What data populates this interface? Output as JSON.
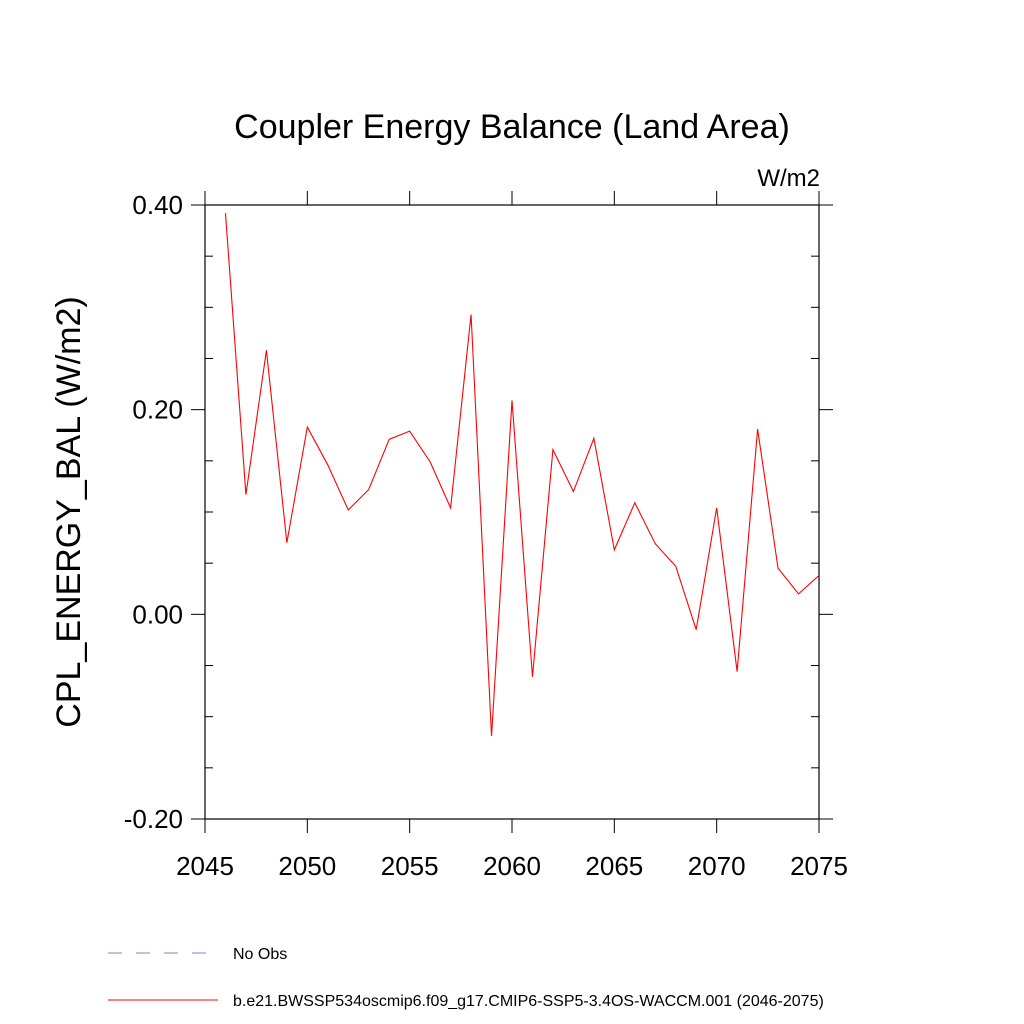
{
  "chart_data": {
    "type": "line",
    "title": "Coupler Energy Balance (Land Area)",
    "units_label": "W/m2",
    "xlabel": "",
    "ylabel": "CPL_ENERGY_BAL  (W/m2)",
    "xlim": [
      2045,
      2075
    ],
    "ylim": [
      -0.2,
      0.4
    ],
    "x_ticks": [
      2045,
      2050,
      2055,
      2060,
      2065,
      2070,
      2075
    ],
    "x_tick_labels": [
      "2045",
      "2050",
      "2055",
      "2060",
      "2065",
      "2070",
      "2075"
    ],
    "y_ticks": [
      -0.2,
      0.0,
      0.2,
      0.4
    ],
    "y_tick_labels": [
      "-0.20",
      "0.00",
      "0.20",
      "0.40"
    ],
    "y_minor_step": 0.05,
    "x_minor_step": 1,
    "grid": false,
    "legend_position": "bottom-left",
    "series": [
      {
        "name": "b.e21.BWSSP534oscmip6.f09_g17.CMIP6-SSP5-3.4OS-WACCM.001 (2046-2075)",
        "color": "#ff0000",
        "style": "solid",
        "x": [
          2046,
          2047,
          2048,
          2049,
          2050,
          2051,
          2052,
          2053,
          2054,
          2055,
          2056,
          2057,
          2058,
          2059,
          2060,
          2061,
          2062,
          2063,
          2064,
          2065,
          2066,
          2067,
          2068,
          2069,
          2070,
          2071,
          2072,
          2073,
          2074,
          2075
        ],
        "values": [
          0.392,
          0.117,
          0.258,
          0.07,
          0.183,
          0.146,
          0.102,
          0.122,
          0.171,
          0.179,
          0.149,
          0.104,
          0.293,
          -0.119,
          0.209,
          -0.061,
          0.161,
          0.12,
          0.172,
          0.063,
          0.109,
          0.069,
          0.047,
          -0.015,
          0.104,
          -0.056,
          0.181,
          0.045,
          0.02,
          0.038
        ]
      },
      {
        "name": "No Obs",
        "color": "#8080c0",
        "style": "dashed",
        "x": [],
        "values": []
      }
    ]
  }
}
